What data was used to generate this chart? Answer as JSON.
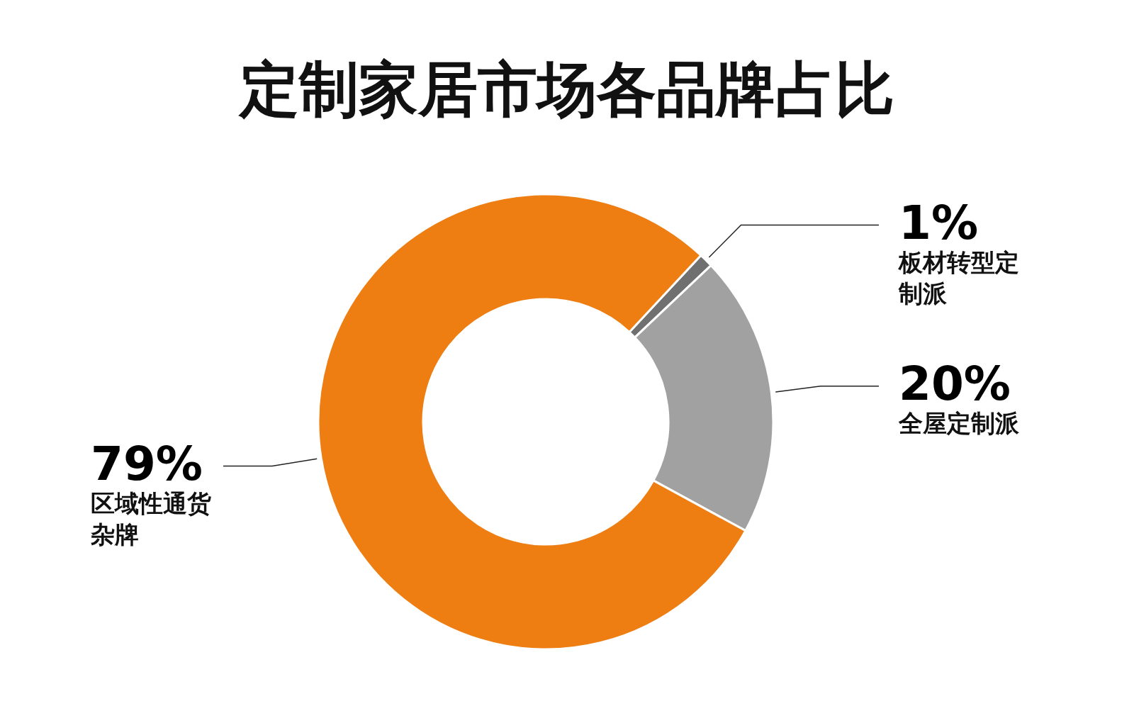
{
  "chart_data": {
    "type": "donut",
    "title": "定制家居市场各品牌占比",
    "categories": [
      "板材转型定制派",
      "全屋定制派",
      "区域性通货杂牌"
    ],
    "values": [
      1,
      20,
      79
    ],
    "value_labels": [
      "1%",
      "20%",
      "79%"
    ],
    "colors": [
      "#707070",
      "#a0a1a0",
      "#ee7d12"
    ]
  }
}
